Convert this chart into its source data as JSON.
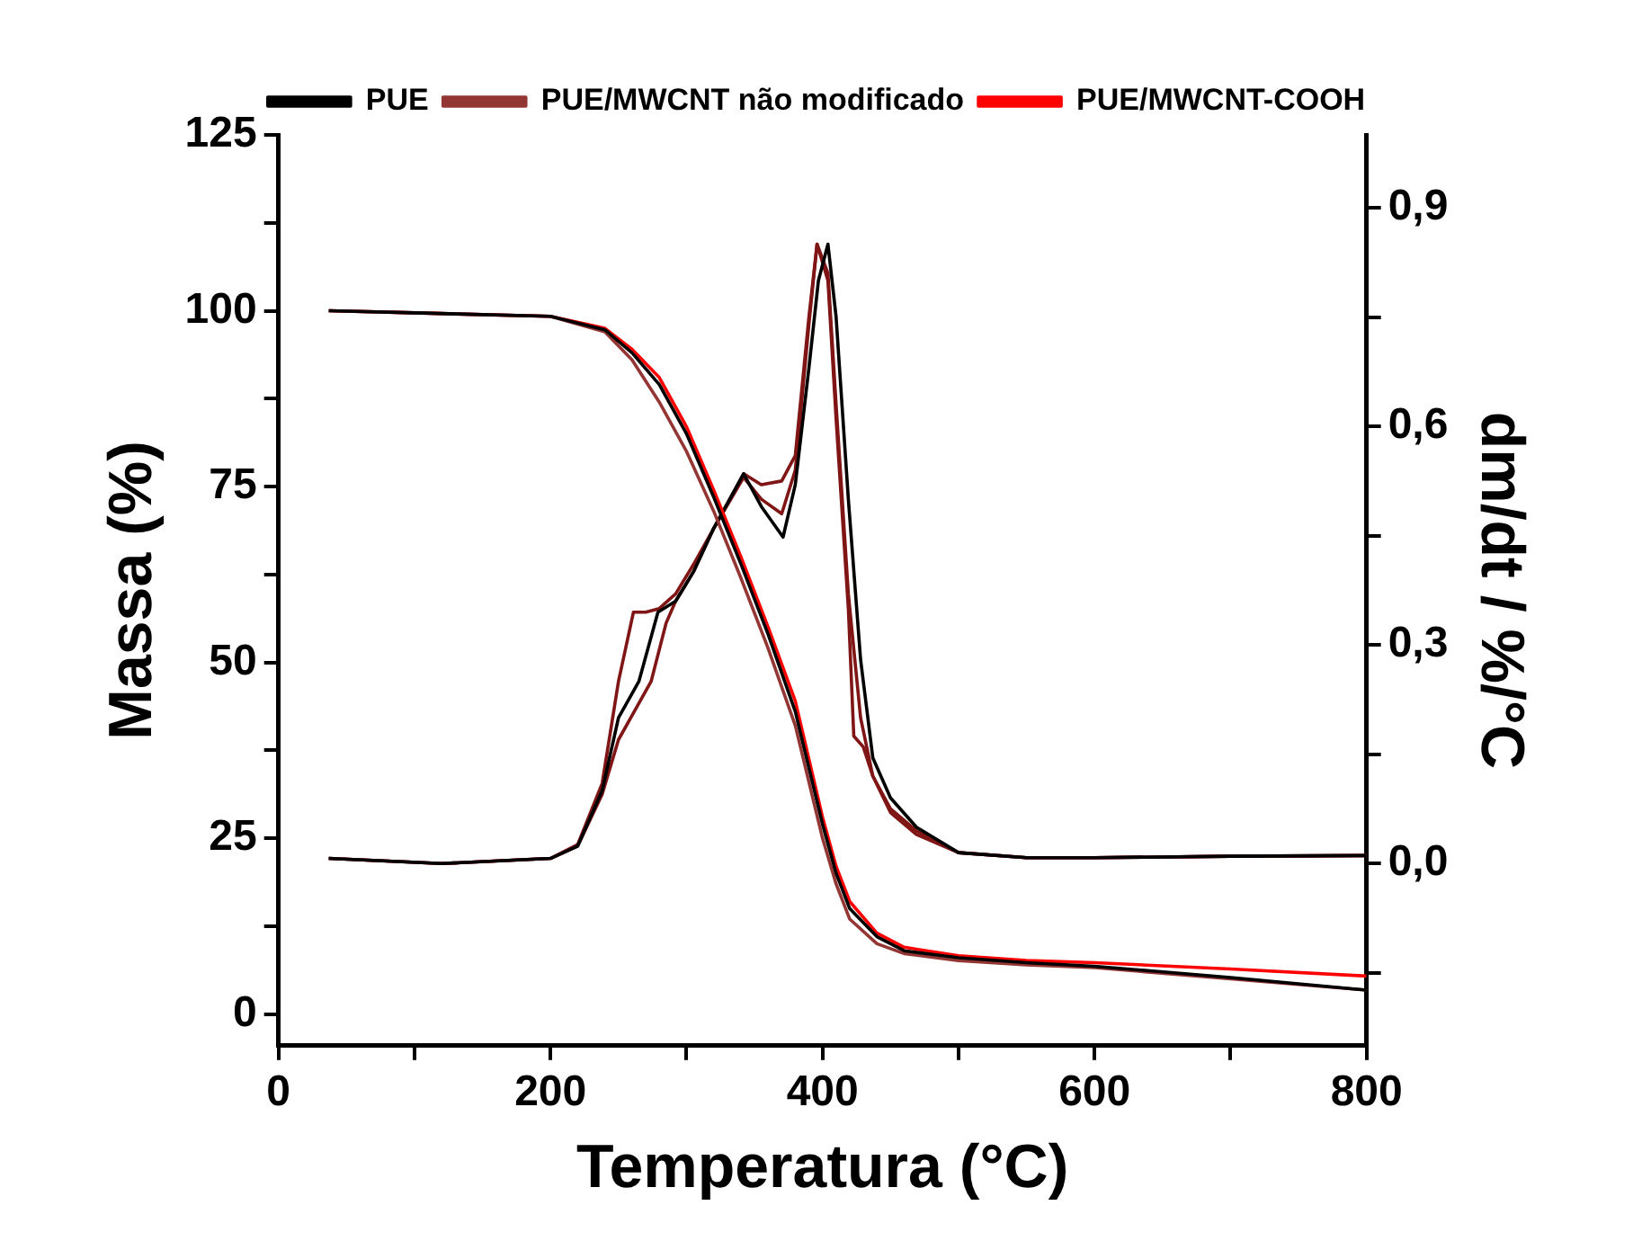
{
  "chart_data": {
    "type": "line",
    "xlabel": "Temperatura (°C)",
    "ylabel": "Massa (%)",
    "y2label": "dm/dt / %/°C",
    "legend": "top",
    "xlim": [
      0,
      800
    ],
    "xticks": [
      0,
      {
        "value": 100,
        "label": null
      },
      200,
      {
        "value": 300,
        "label": null
      },
      400,
      {
        "value": 500,
        "label": null
      },
      600,
      {
        "value": 700,
        "label": null
      },
      800
    ],
    "ylim": [
      -4.5,
      125
    ],
    "yticks": [
      0,
      {
        "value": 12.5,
        "label": null
      },
      25,
      {
        "value": 37.5,
        "label": null
      },
      50,
      {
        "value": 62.5,
        "label": null
      },
      75,
      {
        "value": 87.5,
        "label": null
      },
      100,
      {
        "value": 112.5,
        "label": null
      },
      125
    ],
    "y2lim": [
      -0.25,
      1.0
    ],
    "y2ticks": [
      {
        "value": -0.15,
        "label": null
      },
      {
        "value": 0,
        "label": "0,0"
      },
      {
        "value": 0.15,
        "label": null
      },
      {
        "value": 0.3,
        "label": "0,3"
      },
      {
        "value": 0.45,
        "label": null
      },
      {
        "value": 0.6,
        "label": "0,6"
      },
      {
        "value": 0.75,
        "label": null
      },
      {
        "value": 0.9,
        "label": "0,9"
      }
    ],
    "series": [
      {
        "name": "PUE",
        "color": "#000000",
        "x": [
          37,
          100,
          200,
          240,
          260,
          280,
          300,
          320,
          340,
          360,
          380,
          400,
          410,
          420,
          440,
          460,
          500,
          550,
          600,
          700,
          800
        ],
        "values": [
          100,
          99.7,
          99.2,
          97.3,
          94,
          89.5,
          82.5,
          73.5,
          64,
          54,
          43,
          27,
          20,
          15,
          11,
          9,
          8,
          7.3,
          6.8,
          5.2,
          3.4
        ]
      },
      {
        "name": "PUE/MWCNT não modificado",
        "color": "#943634",
        "x": [
          37,
          100,
          200,
          240,
          260,
          280,
          300,
          320,
          340,
          360,
          380,
          400,
          410,
          420,
          440,
          460,
          500,
          550,
          600,
          700,
          800
        ],
        "values": [
          100,
          99.7,
          99.2,
          97,
          93,
          87,
          80,
          71.5,
          62,
          52,
          41,
          25,
          18.5,
          13.5,
          10,
          8.6,
          7.6,
          7,
          6.6,
          5,
          3.4
        ]
      },
      {
        "name": "PUE/MWCNT-COOH",
        "color": "#ff0000",
        "x": [
          37,
          100,
          200,
          240,
          260,
          280,
          300,
          320,
          340,
          360,
          380,
          400,
          410,
          420,
          440,
          460,
          500,
          550,
          600,
          700,
          800
        ],
        "values": [
          100,
          99.7,
          99.2,
          97.5,
          94.5,
          90.5,
          83.5,
          74.5,
          65,
          55,
          44.5,
          28,
          21,
          16,
          11.5,
          9.5,
          8.3,
          7.6,
          7.3,
          6.4,
          5.4
        ]
      },
      {
        "axis": "y2",
        "color": "#000000",
        "x": [
          37,
          120,
          200,
          220,
          238,
          250,
          265,
          279,
          292,
          305,
          320,
          342,
          355,
          371,
          380,
          390,
          397,
          404,
          410,
          419,
          428,
          437,
          450,
          469,
          500,
          550,
          600,
          700,
          800
        ],
        "values": [
          0.007,
          0,
          0.007,
          0.024,
          0.1,
          0.2,
          0.25,
          0.345,
          0.36,
          0.4,
          0.46,
          0.535,
          0.49,
          0.448,
          0.52,
          0.68,
          0.8,
          0.85,
          0.75,
          0.5,
          0.28,
          0.145,
          0.09,
          0.05,
          0.015,
          0.008,
          0.008,
          0.01,
          0.011
        ]
      },
      {
        "axis": "y2",
        "color": "#7f1515",
        "x": [
          37,
          120,
          200,
          220,
          238,
          250,
          261,
          270,
          280,
          292,
          305,
          320,
          342,
          355,
          370,
          380,
          390,
          396,
          404,
          410,
          419,
          423,
          430,
          437,
          450,
          469,
          500,
          550,
          600,
          700,
          800
        ],
        "values": [
          0.007,
          0,
          0.007,
          0.026,
          0.11,
          0.25,
          0.345,
          0.345,
          0.35,
          0.37,
          0.41,
          0.46,
          0.535,
          0.52,
          0.525,
          0.56,
          0.75,
          0.85,
          0.8,
          0.61,
          0.35,
          0.175,
          0.16,
          0.12,
          0.07,
          0.04,
          0.015,
          0.008,
          0.008,
          0.01,
          0.011
        ]
      },
      {
        "axis": "y2",
        "color": "#7f1515",
        "x": [
          37,
          120,
          200,
          220,
          238,
          250,
          262,
          274,
          285,
          292,
          305,
          320,
          342,
          355,
          370,
          380,
          390,
          396,
          404,
          410,
          419,
          428,
          437,
          450,
          469,
          500,
          550,
          600,
          700,
          800
        ],
        "values": [
          0.007,
          0,
          0.007,
          0.024,
          0.095,
          0.17,
          0.21,
          0.25,
          0.33,
          0.36,
          0.4,
          0.46,
          0.53,
          0.5,
          0.48,
          0.54,
          0.74,
          0.85,
          0.81,
          0.63,
          0.37,
          0.2,
          0.12,
          0.075,
          0.045,
          0.015,
          0.008,
          0.008,
          0.01,
          0.011
        ]
      }
    ]
  }
}
